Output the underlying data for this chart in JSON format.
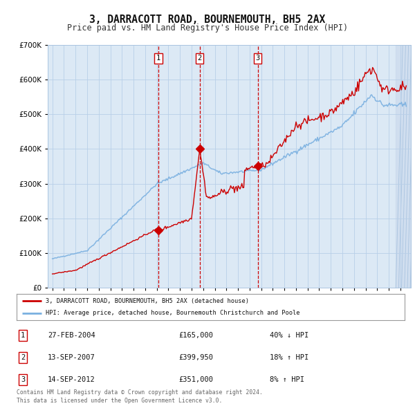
{
  "title": "3, DARRACOTT ROAD, BOURNEMOUTH, BH5 2AX",
  "subtitle": "Price paid vs. HM Land Registry's House Price Index (HPI)",
  "title_fontsize": 10.5,
  "subtitle_fontsize": 9,
  "bg_color": "#dce9f5",
  "grid_color": "#b8cfe8",
  "hpi_color": "#7ab0e0",
  "price_color": "#cc0000",
  "ylim": [
    0,
    700000
  ],
  "yticks": [
    0,
    100000,
    200000,
    300000,
    400000,
    500000,
    600000,
    700000
  ],
  "sale_dates": [
    2004.15,
    2007.7,
    2012.7
  ],
  "sale_prices": [
    165000,
    399950,
    351000
  ],
  "sale_labels": [
    "1",
    "2",
    "3"
  ],
  "legend_line1": "3, DARRACOTT ROAD, BOURNEMOUTH, BH5 2AX (detached house)",
  "legend_line2": "HPI: Average price, detached house, Bournemouth Christchurch and Poole",
  "table_rows": [
    {
      "num": "1",
      "date": "27-FEB-2004",
      "price": "£165,000",
      "change": "40% ↓ HPI"
    },
    {
      "num": "2",
      "date": "13-SEP-2007",
      "price": "£399,950",
      "change": "18% ↑ HPI"
    },
    {
      "num": "3",
      "date": "14-SEP-2012",
      "price": "£351,000",
      "change": "8% ↑ HPI"
    }
  ],
  "footer": "Contains HM Land Registry data © Crown copyright and database right 2024.\nThis data is licensed under the Open Government Licence v3.0."
}
